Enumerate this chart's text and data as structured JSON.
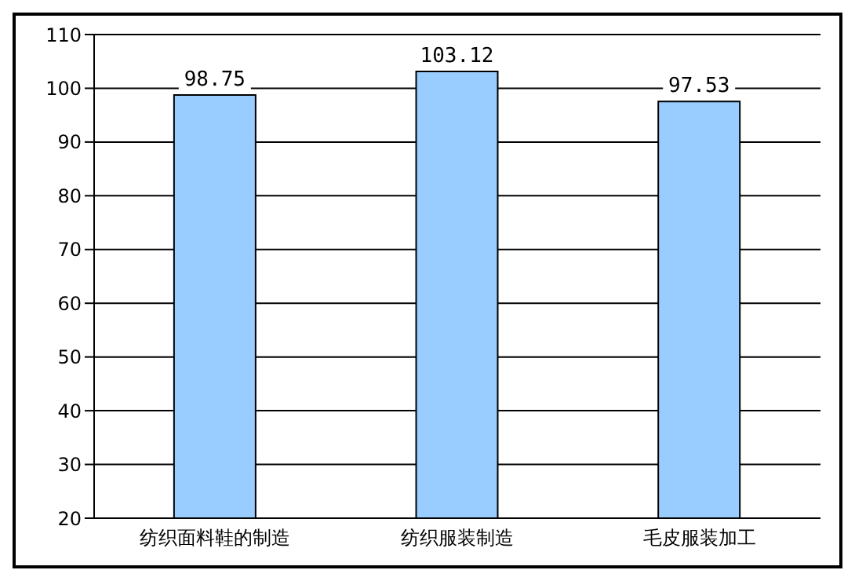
{
  "chart_data": {
    "type": "bar",
    "categories": [
      "纺织面料鞋的制造",
      "纺织服装制造",
      "毛皮服装加工"
    ],
    "values": [
      98.75,
      103.12,
      97.53
    ],
    "color": "#99ccff",
    "ylim": [
      20,
      110
    ],
    "yticks": [
      20,
      30,
      40,
      50,
      60,
      70,
      80,
      90,
      100,
      110
    ],
    "grid": "y",
    "data_labels": true
  }
}
